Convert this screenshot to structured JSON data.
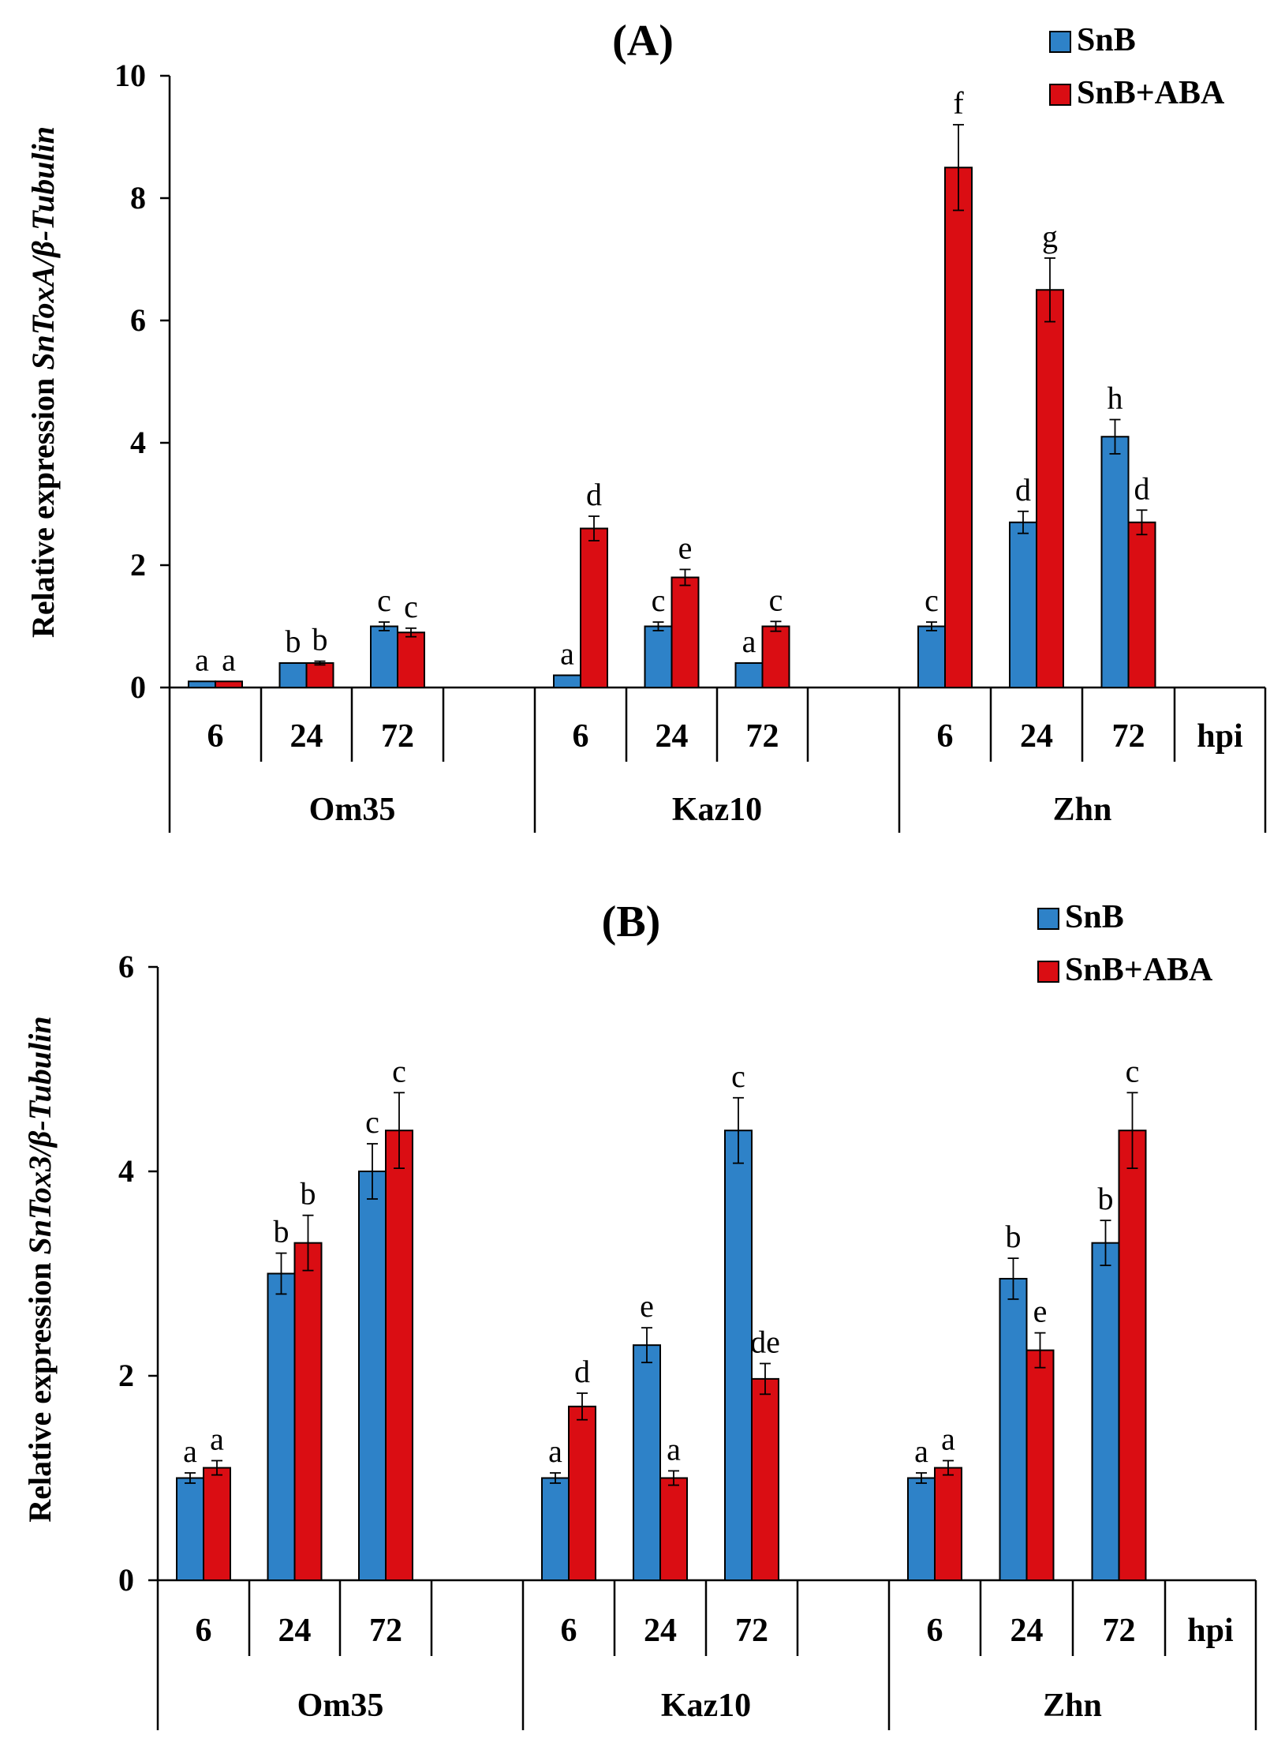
{
  "figure": {
    "colors": {
      "series_a": "#2E82C8",
      "series_b": "#DA0D13",
      "axis": "#000000"
    }
  },
  "chart_data": [
    {
      "type": "bar",
      "title": "(A)",
      "ylabel_prefix": "Relative expression",
      "ylabel_gene": "SnToxA/β-Tubulin",
      "ylim": [
        0,
        10
      ],
      "yticks": [
        "0",
        "2",
        "4",
        "6",
        "8",
        "10"
      ],
      "xlabel_time": "hpi",
      "groups": [
        {
          "name": "Om35",
          "times": [
            "6",
            "24",
            "72"
          ]
        },
        {
          "name": "Kaz10",
          "times": [
            "6",
            "24",
            "72"
          ]
        },
        {
          "name": "Zhn",
          "times": [
            "6",
            "24",
            "72"
          ]
        }
      ],
      "series": [
        {
          "name": "SnB",
          "values": [
            0.1,
            0.4,
            1.0,
            0.2,
            1.0,
            0.4,
            1.0,
            2.7,
            4.1
          ],
          "errors": [
            0.0,
            0.0,
            0.07,
            0.0,
            0.07,
            0.0,
            0.07,
            0.18,
            0.28
          ],
          "letters": [
            "a",
            "b",
            "c",
            "a",
            "c",
            "a",
            "c",
            "d",
            "h"
          ]
        },
        {
          "name": "SnB+ABA",
          "values": [
            0.1,
            0.4,
            0.9,
            2.6,
            1.8,
            1.0,
            8.5,
            6.5,
            2.7
          ],
          "errors": [
            0.0,
            0.03,
            0.07,
            0.2,
            0.13,
            0.08,
            0.7,
            0.52,
            0.2
          ],
          "letters": [
            "a",
            "b",
            "c",
            "d",
            "e",
            "c",
            "f",
            "g",
            "d"
          ]
        }
      ]
    },
    {
      "type": "bar",
      "title": "(B)",
      "ylabel_prefix": "Relative expression",
      "ylabel_gene": "SnTox3/β-Tubulin",
      "ylim": [
        0,
        6
      ],
      "yticks": [
        "0",
        "2",
        "4",
        "6"
      ],
      "xlabel_time": "hpi",
      "groups": [
        {
          "name": "Om35",
          "times": [
            "6",
            "24",
            "72"
          ]
        },
        {
          "name": "Kaz10",
          "times": [
            "6",
            "24",
            "72"
          ]
        },
        {
          "name": "Zhn",
          "times": [
            "6",
            "24",
            "72"
          ]
        }
      ],
      "series": [
        {
          "name": "SnB",
          "values": [
            1.0,
            3.0,
            4.0,
            1.0,
            2.3,
            4.4,
            1.0,
            2.95,
            3.3
          ],
          "errors": [
            0.05,
            0.2,
            0.27,
            0.05,
            0.17,
            0.32,
            0.05,
            0.2,
            0.22
          ],
          "letters": [
            "a",
            "b",
            "c",
            "a",
            "e",
            "c",
            "a",
            "b",
            "b"
          ]
        },
        {
          "name": "SnB+ABA",
          "values": [
            1.1,
            3.3,
            4.4,
            1.7,
            1.0,
            1.97,
            1.1,
            2.25,
            4.4
          ],
          "errors": [
            0.07,
            0.27,
            0.37,
            0.13,
            0.07,
            0.15,
            0.07,
            0.17,
            0.37
          ],
          "letters": [
            "a",
            "b",
            "c",
            "d",
            "a",
            "de",
            "a",
            "e",
            "c"
          ]
        }
      ]
    }
  ]
}
